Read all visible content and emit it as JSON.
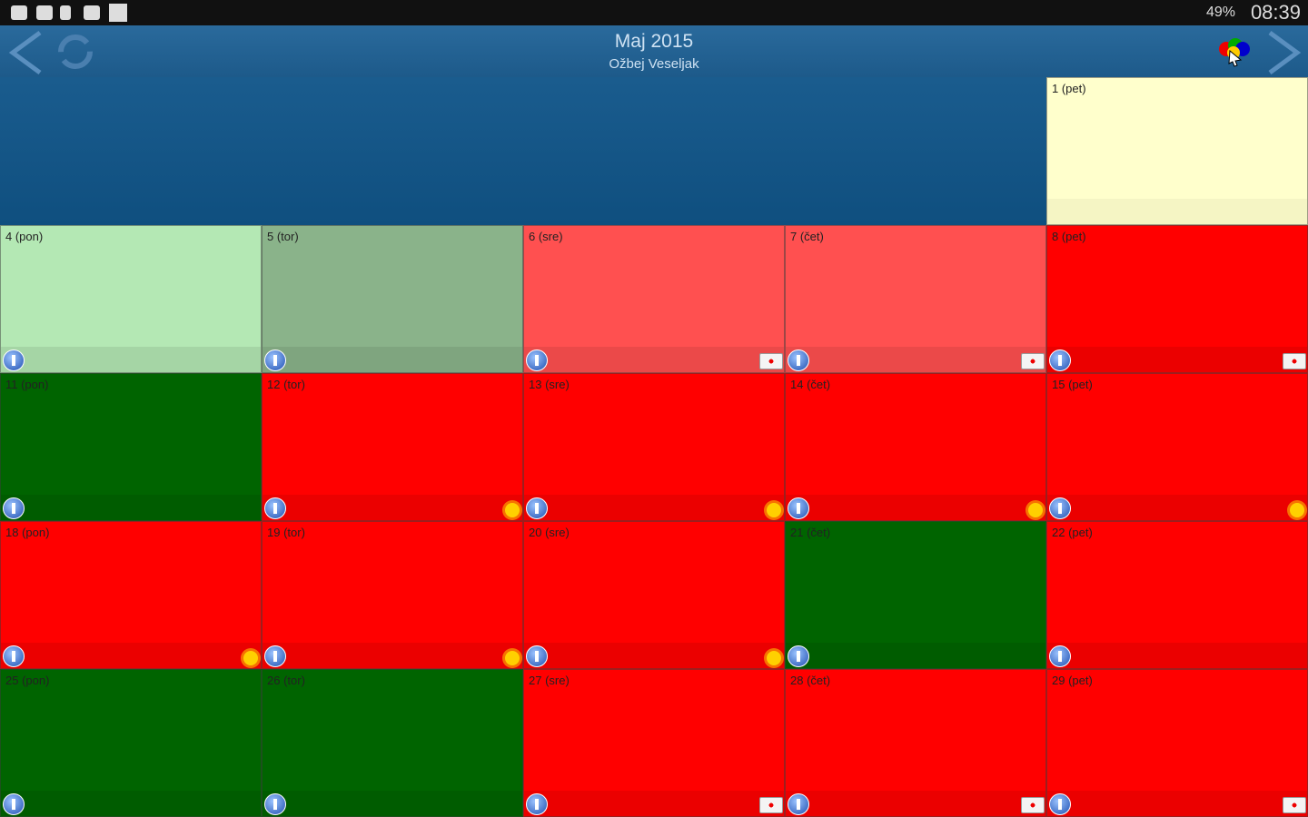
{
  "status_bar": {
    "battery": "49%",
    "time": "08:39"
  },
  "header": {
    "title": "Maj 2015",
    "subtitle": "Ožbej Veseljak"
  },
  "days": [
    {
      "label": "1 (pet)",
      "color": "#ffffcc",
      "info": false
    },
    {
      "label": "4 (pon)",
      "color": "#b4e8b4",
      "info": true
    },
    {
      "label": "5 (tor)",
      "color": "#8ab38a",
      "info": true
    },
    {
      "label": "6 (sre)",
      "color": "#ff5050",
      "info": true,
      "badge": "kit"
    },
    {
      "label": "7 (čet)",
      "color": "#ff5050",
      "info": true,
      "badge": "kit"
    },
    {
      "label": "8 (pet)",
      "color": "#ff0000",
      "info": true,
      "badge": "kit"
    },
    {
      "label": "11 (pon)",
      "color": "#006400",
      "info": true
    },
    {
      "label": "12 (tor)",
      "color": "#ff0000",
      "info": true,
      "badge": "sun"
    },
    {
      "label": "13 (sre)",
      "color": "#ff0000",
      "info": true,
      "badge": "sun"
    },
    {
      "label": "14 (čet)",
      "color": "#ff0000",
      "info": true,
      "badge": "sun"
    },
    {
      "label": "15 (pet)",
      "color": "#ff0000",
      "info": true,
      "badge": "sun"
    },
    {
      "label": "18 (pon)",
      "color": "#ff0000",
      "info": true,
      "badge": "sun"
    },
    {
      "label": "19 (tor)",
      "color": "#ff0000",
      "info": true,
      "badge": "sun"
    },
    {
      "label": "20 (sre)",
      "color": "#ff0000",
      "info": true,
      "badge": "sun"
    },
    {
      "label": "21 (čet)",
      "color": "#006400",
      "info": true
    },
    {
      "label": "22 (pet)",
      "color": "#ff0000",
      "info": true
    },
    {
      "label": "25 (pon)",
      "color": "#006400",
      "info": true
    },
    {
      "label": "26 (tor)",
      "color": "#006400",
      "info": true
    },
    {
      "label": "27 (sre)",
      "color": "#ff0000",
      "info": true,
      "badge": "kit"
    },
    {
      "label": "28 (čet)",
      "color": "#ff0000",
      "info": true,
      "badge": "kit"
    },
    {
      "label": "29 (pet)",
      "color": "#ff0000",
      "info": true,
      "badge": "kit"
    }
  ]
}
